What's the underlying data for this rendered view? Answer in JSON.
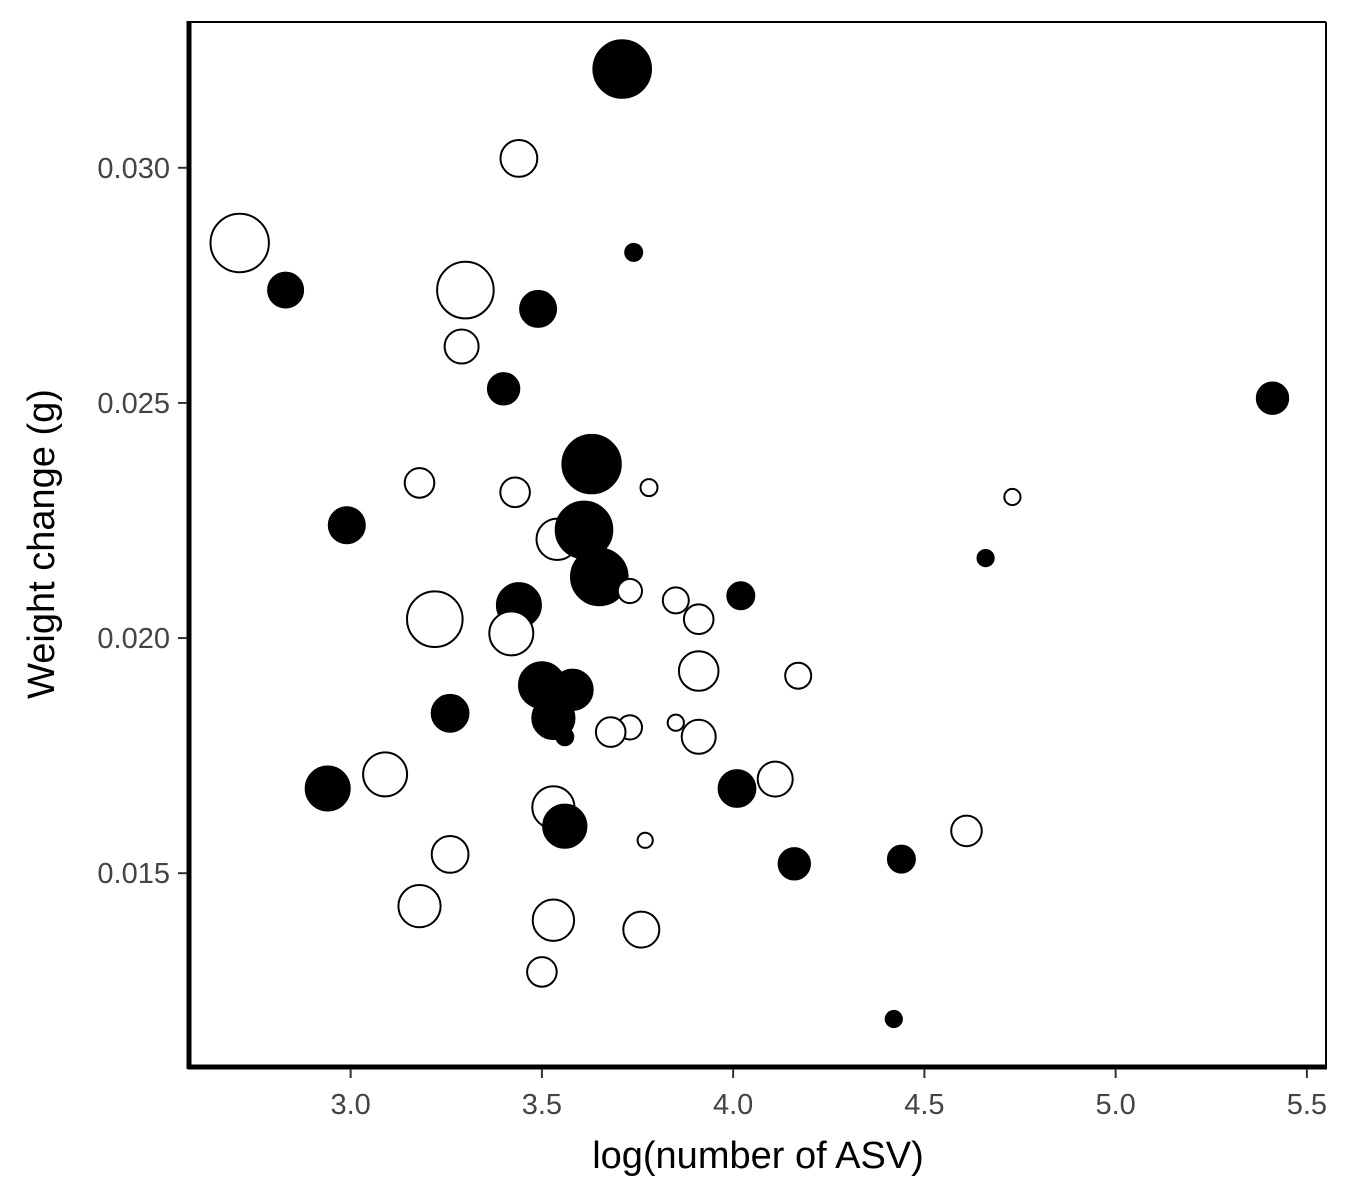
{
  "chart_data": {
    "type": "scatter",
    "title": "",
    "xlabel": "log(number of ASV)",
    "ylabel": "Weight change (g)",
    "xlim": [
      2.58,
      5.55
    ],
    "ylim": [
      0.0109,
      0.0331
    ],
    "xticks": [
      3.0,
      3.5,
      4.0,
      4.5,
      5.0,
      5.5
    ],
    "xtick_labels": [
      "3.0",
      "3.5",
      "4.0",
      "4.5",
      "5.0",
      "5.5"
    ],
    "yticks": [
      0.015,
      0.02,
      0.025,
      0.03
    ],
    "ytick_labels": [
      "0.015",
      "0.020",
      "0.025",
      "0.030"
    ],
    "grid": false,
    "legend": "none",
    "encoding": {
      "fill": "filled vs open circles (two groups, no legend shown)",
      "size": "point size varies (third variable, relative scale 1-6)"
    },
    "colors": {
      "filled": "#000000",
      "open_fill": "#ffffff",
      "stroke": "#000000"
    },
    "points": [
      {
        "x": 3.71,
        "y": 0.0321,
        "filled": true,
        "size": 5.5
      },
      {
        "x": 3.44,
        "y": 0.0302,
        "filled": false,
        "size": 3.2
      },
      {
        "x": 2.71,
        "y": 0.0284,
        "filled": false,
        "size": 5.6
      },
      {
        "x": 3.74,
        "y": 0.0282,
        "filled": true,
        "size": 1.0
      },
      {
        "x": 2.83,
        "y": 0.0274,
        "filled": true,
        "size": 3.0
      },
      {
        "x": 3.3,
        "y": 0.0274,
        "filled": false,
        "size": 5.4
      },
      {
        "x": 3.49,
        "y": 0.027,
        "filled": true,
        "size": 3.1
      },
      {
        "x": 3.29,
        "y": 0.0262,
        "filled": false,
        "size": 2.9
      },
      {
        "x": 3.4,
        "y": 0.0253,
        "filled": true,
        "size": 2.6
      },
      {
        "x": 5.41,
        "y": 0.0251,
        "filled": true,
        "size": 2.6
      },
      {
        "x": 3.63,
        "y": 0.0237,
        "filled": true,
        "size": 5.6
      },
      {
        "x": 3.18,
        "y": 0.0233,
        "filled": false,
        "size": 2.4
      },
      {
        "x": 3.78,
        "y": 0.0232,
        "filled": false,
        "size": 1.0
      },
      {
        "x": 3.43,
        "y": 0.0231,
        "filled": false,
        "size": 2.4
      },
      {
        "x": 4.73,
        "y": 0.023,
        "filled": false,
        "size": 0.9
      },
      {
        "x": 2.99,
        "y": 0.0224,
        "filled": true,
        "size": 3.1
      },
      {
        "x": 3.54,
        "y": 0.0221,
        "filled": false,
        "size": 3.7
      },
      {
        "x": 3.61,
        "y": 0.0223,
        "filled": true,
        "size": 5.4
      },
      {
        "x": 4.66,
        "y": 0.0217,
        "filled": true,
        "size": 0.9
      },
      {
        "x": 3.65,
        "y": 0.0213,
        "filled": true,
        "size": 5.4
      },
      {
        "x": 3.73,
        "y": 0.021,
        "filled": false,
        "size": 1.8
      },
      {
        "x": 4.02,
        "y": 0.0209,
        "filled": true,
        "size": 2.1
      },
      {
        "x": 3.85,
        "y": 0.0208,
        "filled": false,
        "size": 2.0
      },
      {
        "x": 3.44,
        "y": 0.0207,
        "filled": true,
        "size": 4.0
      },
      {
        "x": 3.91,
        "y": 0.0204,
        "filled": false,
        "size": 2.4
      },
      {
        "x": 3.22,
        "y": 0.0204,
        "filled": false,
        "size": 5.3
      },
      {
        "x": 3.42,
        "y": 0.0201,
        "filled": false,
        "size": 4.0
      },
      {
        "x": 3.91,
        "y": 0.0193,
        "filled": false,
        "size": 3.5
      },
      {
        "x": 4.17,
        "y": 0.0192,
        "filled": false,
        "size": 2.0
      },
      {
        "x": 3.5,
        "y": 0.019,
        "filled": true,
        "size": 4.2
      },
      {
        "x": 3.58,
        "y": 0.0189,
        "filled": true,
        "size": 3.6
      },
      {
        "x": 3.26,
        "y": 0.0184,
        "filled": true,
        "size": 3.2
      },
      {
        "x": 3.53,
        "y": 0.0183,
        "filled": true,
        "size": 3.8
      },
      {
        "x": 3.85,
        "y": 0.0182,
        "filled": false,
        "size": 0.9
      },
      {
        "x": 3.73,
        "y": 0.0181,
        "filled": false,
        "size": 1.8
      },
      {
        "x": 3.68,
        "y": 0.018,
        "filled": false,
        "size": 2.4
      },
      {
        "x": 3.91,
        "y": 0.0179,
        "filled": false,
        "size": 2.9
      },
      {
        "x": 3.56,
        "y": 0.0179,
        "filled": true,
        "size": 1.0
      },
      {
        "x": 3.09,
        "y": 0.0171,
        "filled": false,
        "size": 4.0
      },
      {
        "x": 4.11,
        "y": 0.017,
        "filled": false,
        "size": 3.0
      },
      {
        "x": 2.94,
        "y": 0.0168,
        "filled": true,
        "size": 4.0
      },
      {
        "x": 4.01,
        "y": 0.0168,
        "filled": true,
        "size": 3.2
      },
      {
        "x": 3.53,
        "y": 0.0164,
        "filled": false,
        "size": 3.8
      },
      {
        "x": 3.56,
        "y": 0.016,
        "filled": true,
        "size": 3.9
      },
      {
        "x": 4.61,
        "y": 0.0159,
        "filled": false,
        "size": 2.5
      },
      {
        "x": 3.77,
        "y": 0.0157,
        "filled": false,
        "size": 0.8
      },
      {
        "x": 3.26,
        "y": 0.0154,
        "filled": false,
        "size": 3.2
      },
      {
        "x": 4.44,
        "y": 0.0153,
        "filled": true,
        "size": 2.1
      },
      {
        "x": 4.16,
        "y": 0.0152,
        "filled": true,
        "size": 2.6
      },
      {
        "x": 3.18,
        "y": 0.0143,
        "filled": false,
        "size": 3.8
      },
      {
        "x": 3.53,
        "y": 0.014,
        "filled": false,
        "size": 3.7
      },
      {
        "x": 3.76,
        "y": 0.0138,
        "filled": false,
        "size": 3.1
      },
      {
        "x": 3.5,
        "y": 0.0129,
        "filled": false,
        "size": 2.4
      },
      {
        "x": 4.42,
        "y": 0.0119,
        "filled": true,
        "size": 0.9
      }
    ]
  }
}
